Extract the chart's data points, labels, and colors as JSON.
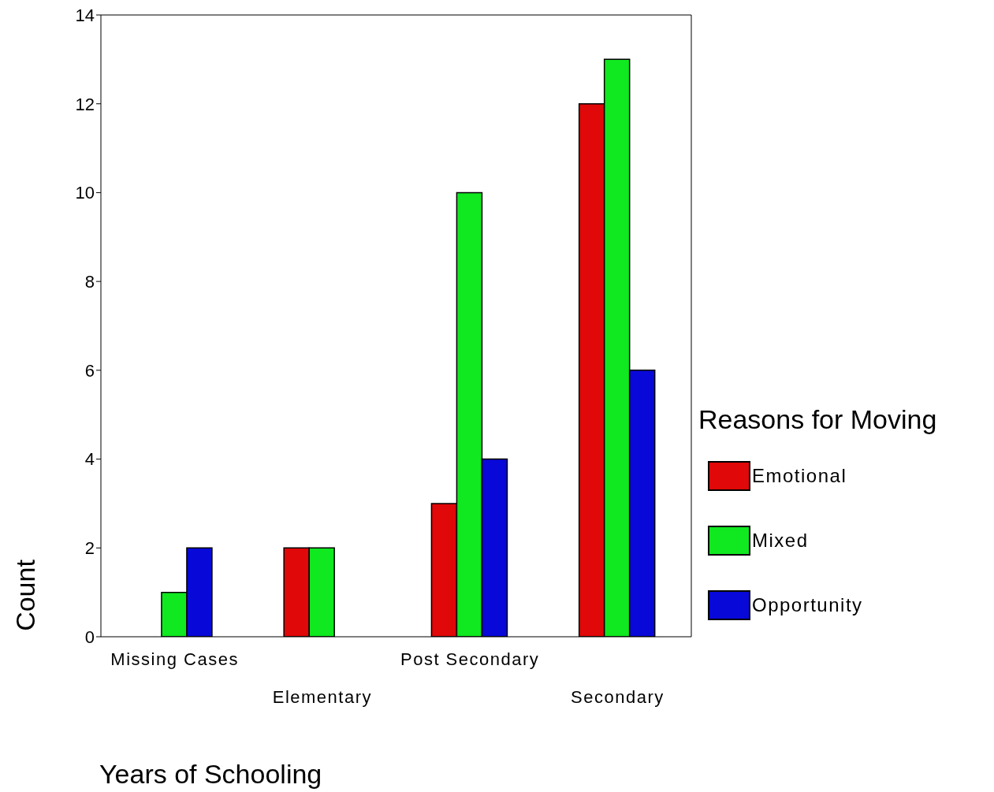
{
  "chart_data": {
    "type": "bar",
    "xlabel": "Years of Schooling",
    "ylabel": "Count",
    "legend_title": "Reasons for Moving",
    "categories": [
      "Missing Cases",
      "Elementary",
      "Post Secondary",
      "Secondary"
    ],
    "series": [
      {
        "name": "Emotional",
        "color": "#e00808",
        "values": [
          0,
          2,
          3,
          12
        ]
      },
      {
        "name": "Mixed",
        "color": "#10e820",
        "values": [
          1,
          2,
          10,
          13
        ]
      },
      {
        "name": "Opportunity",
        "color": "#0808d8",
        "values": [
          2,
          0,
          4,
          6
        ]
      }
    ],
    "ylim": [
      0,
      14
    ],
    "yticks": [
      0,
      2,
      4,
      6,
      8,
      10,
      12,
      14
    ],
    "grid": false,
    "legend": "right"
  }
}
